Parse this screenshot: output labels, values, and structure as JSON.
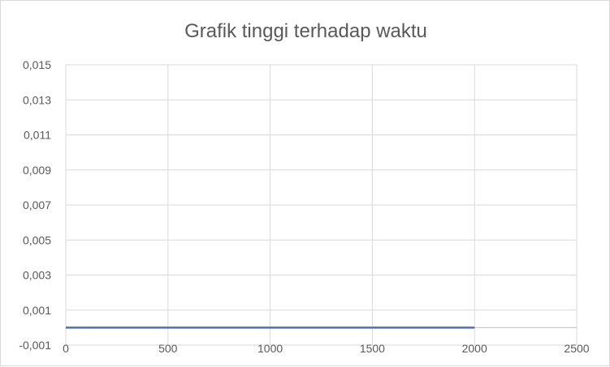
{
  "chart_data": {
    "type": "line",
    "title": "Grafik tinggi terhadap waktu",
    "xlabel": "",
    "ylabel": "",
    "xlim": [
      0,
      2500
    ],
    "ylim": [
      -0.001,
      0.015
    ],
    "x_ticks": [
      0,
      500,
      1000,
      1500,
      2000,
      2500
    ],
    "x_tick_labels": [
      "0",
      "500",
      "1000",
      "1500",
      "2000",
      "2500"
    ],
    "y_ticks": [
      -0.001,
      0.001,
      0.003,
      0.005,
      0.007,
      0.009,
      0.011,
      0.013,
      0.015
    ],
    "y_tick_labels": [
      "-0,001",
      "0,001",
      "0,003",
      "0,005",
      "0,007",
      "0,009",
      "0,011",
      "0,013",
      "0,015"
    ],
    "grid": true,
    "legend": "none",
    "series": [
      {
        "color": "#4472c4",
        "x": [
          0,
          500,
          1000,
          1500,
          2000
        ],
        "y": [
          0,
          0,
          0,
          0,
          0
        ]
      }
    ]
  }
}
